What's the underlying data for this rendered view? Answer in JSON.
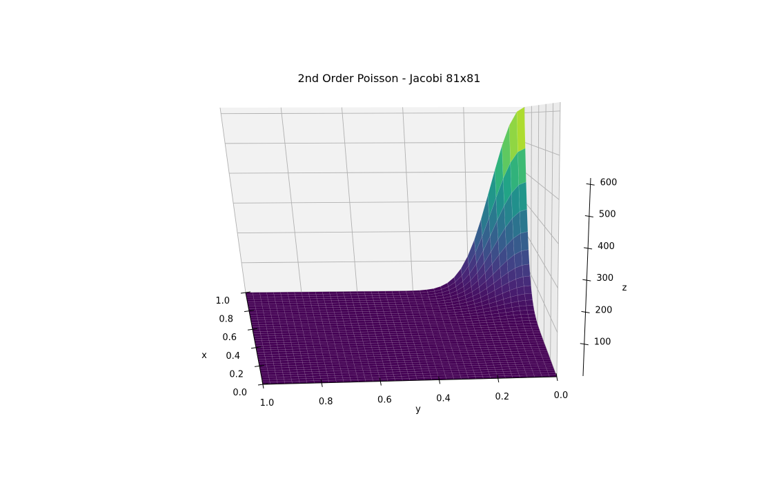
{
  "chart_data": {
    "type": "surface",
    "title": "2nd Order Poisson - Jacobi 81x81",
    "xlabel": "x",
    "ylabel": "y",
    "zlabel": "z",
    "grid": true,
    "colormap": "viridis",
    "x_ticks": [
      "0.0",
      "0.2",
      "0.4",
      "0.6",
      "0.8",
      "1.0"
    ],
    "y_ticks": [
      "1.0",
      "0.8",
      "0.6",
      "0.4",
      "0.2",
      "0.0"
    ],
    "z_ticks": [
      "100",
      "200",
      "300",
      "400",
      "500",
      "600"
    ],
    "xlim": [
      0,
      1
    ],
    "ylim": [
      0,
      1
    ],
    "zlim": [
      0,
      620
    ],
    "z_max": 620,
    "peak_location": {
      "x": 1.0,
      "y": 0.0
    }
  }
}
